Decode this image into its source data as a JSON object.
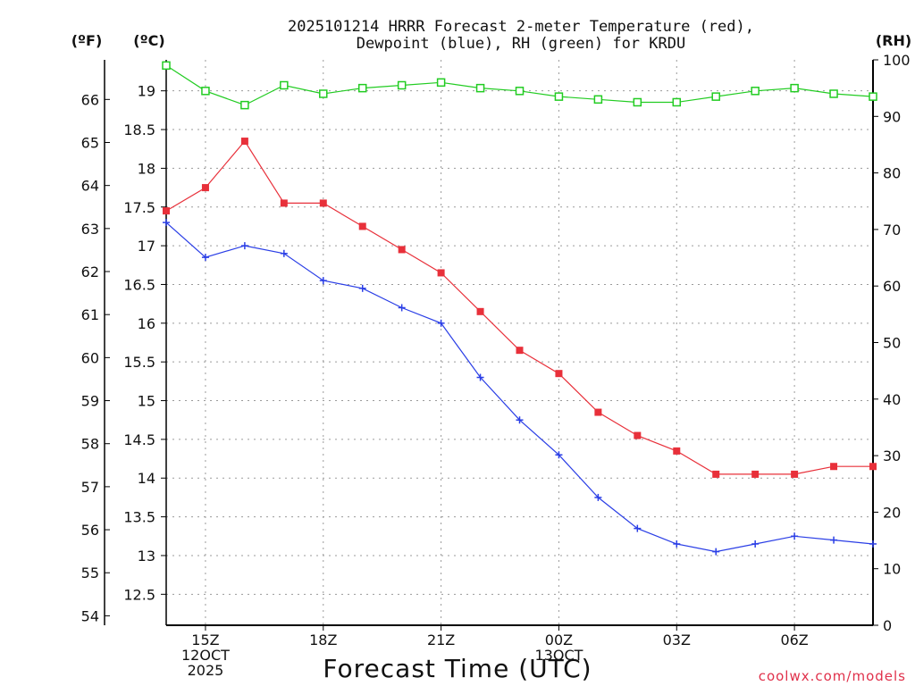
{
  "chart_data": {
    "type": "line",
    "title_line1": "2025101214 HRRR Forecast 2-meter Temperature (red),",
    "title_line2": "Dewpoint (blue), RH (green) for KRDU",
    "xlabel": "Forecast Time (UTC)",
    "credit": "coolwx.com/models",
    "units": {
      "fahrenheit": "(ºF)",
      "celsius": "(ºC)",
      "rh": "(RH)"
    },
    "x_hours": [
      14,
      15,
      16,
      17,
      18,
      19,
      20,
      21,
      22,
      23,
      24,
      25,
      26,
      27,
      28,
      29,
      30,
      31,
      32
    ],
    "xlim": [
      14,
      32
    ],
    "x_ticks": [
      {
        "hour": 15,
        "lines": [
          "15Z",
          "12OCT",
          "2025"
        ]
      },
      {
        "hour": 18,
        "lines": [
          "18Z"
        ]
      },
      {
        "hour": 21,
        "lines": [
          "21Z"
        ]
      },
      {
        "hour": 24,
        "lines": [
          "00Z",
          "13OCT"
        ]
      },
      {
        "hour": 27,
        "lines": [
          "03Z"
        ]
      },
      {
        "hour": 30,
        "lines": [
          "06Z"
        ]
      }
    ],
    "celsius_axis": {
      "ylim": [
        12.1,
        19.4
      ],
      "ticks": [
        "12.5",
        "13",
        "13.5",
        "14",
        "14.5",
        "15",
        "15.5",
        "16",
        "16.5",
        "17",
        "17.5",
        "18",
        "18.5",
        "19"
      ]
    },
    "fahrenheit_axis": {
      "ticks": [
        "54",
        "55",
        "56",
        "57",
        "58",
        "59",
        "60",
        "61",
        "62",
        "63",
        "64",
        "65",
        "66"
      ]
    },
    "rh_axis": {
      "ylim": [
        0,
        100
      ],
      "ticks": [
        "0",
        "10",
        "20",
        "30",
        "40",
        "50",
        "60",
        "70",
        "80",
        "90",
        "100"
      ]
    },
    "series": [
      {
        "name": "Temperature",
        "axis": "celsius",
        "color": "#e8303a",
        "marker": "filled-square",
        "values": [
          17.45,
          17.75,
          18.35,
          17.55,
          17.55,
          17.25,
          16.95,
          16.65,
          16.15,
          15.65,
          15.35,
          14.85,
          14.55,
          14.35,
          14.05,
          14.05,
          14.05,
          14.15,
          14.15
        ]
      },
      {
        "name": "Dewpoint",
        "axis": "celsius",
        "color": "#2a3ee6",
        "marker": "plus",
        "values": [
          17.3,
          16.85,
          17.0,
          16.9,
          16.55,
          16.45,
          16.2,
          16.0,
          15.3,
          14.75,
          14.3,
          13.75,
          13.35,
          13.15,
          13.05,
          13.15,
          13.25,
          13.2,
          13.15
        ]
      },
      {
        "name": "RH",
        "axis": "rh",
        "color": "#22cc22",
        "marker": "open-square",
        "values": [
          99,
          94.5,
          92,
          95.5,
          94,
          95,
          95.5,
          96,
          95,
          94.5,
          93.5,
          93,
          92.5,
          92.5,
          93.5,
          94.5,
          95,
          94,
          93.5
        ]
      }
    ]
  }
}
